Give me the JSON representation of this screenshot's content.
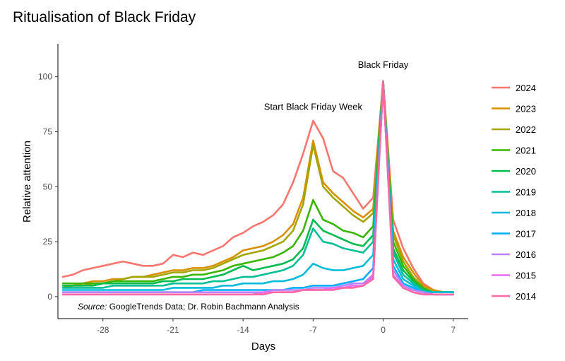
{
  "chart_data": {
    "type": "line",
    "title": "Ritualisation of Black Friday",
    "xlabel": "Days",
    "ylabel": "Relative attention",
    "xlim": [
      -32.5,
      8.5
    ],
    "ylim": [
      -10,
      115
    ],
    "xticks": [
      -28,
      -21,
      -14,
      -7,
      0,
      7
    ],
    "xtick_labels": [
      "-28",
      "-21",
      "-14",
      "-7",
      "0",
      "7"
    ],
    "yticks": [
      0,
      25,
      50,
      75,
      100
    ],
    "ytick_labels": [
      "0",
      "25",
      "50",
      "75",
      "100"
    ],
    "grid": false,
    "legend_position": "right",
    "source_prefix": "Source:",
    "source_text": " GoogleTrends Data; Dr. Robin Bachmann Analysis",
    "annotations": [
      {
        "text": "Black Friday",
        "x": 0,
        "y": 104
      },
      {
        "text": "Start Black Friday Week",
        "x": -7,
        "y": 85
      }
    ],
    "series": [
      {
        "name": "2024",
        "color": "#F8766D",
        "x": [
          -32,
          -31,
          -30,
          -29,
          -28,
          -27,
          -26,
          -25,
          -24,
          -23,
          -22,
          -21,
          -20,
          -19,
          -18,
          -17,
          -16,
          -15,
          -14,
          -13,
          -12,
          -11,
          -10,
          -9,
          -8,
          -7,
          -6,
          -5,
          -4,
          -3,
          -2,
          -1,
          0,
          1,
          2,
          3,
          4,
          5,
          6,
          7
        ],
        "y": [
          9,
          10,
          12,
          13,
          14,
          15,
          16,
          15,
          14,
          14,
          15,
          19,
          18,
          20,
          19,
          21,
          23,
          27,
          29,
          32,
          34,
          37,
          42,
          52,
          65,
          80,
          72,
          57,
          54,
          47,
          40,
          45,
          98,
          35,
          22,
          13,
          6,
          3,
          2,
          2
        ]
      },
      {
        "name": "2023",
        "color": "#D89000",
        "x": [
          -32,
          -31,
          -30,
          -29,
          -28,
          -27,
          -26,
          -25,
          -24,
          -23,
          -22,
          -21,
          -20,
          -19,
          -18,
          -17,
          -16,
          -15,
          -14,
          -13,
          -12,
          -11,
          -10,
          -9,
          -8,
          -7,
          -6,
          -5,
          -4,
          -3,
          -2,
          -1,
          0,
          1,
          2,
          3,
          4,
          5,
          6,
          7
        ],
        "y": [
          5,
          5,
          6,
          7,
          7,
          8,
          8,
          9,
          9,
          10,
          11,
          12,
          12,
          13,
          13,
          14,
          16,
          18,
          21,
          22,
          23,
          25,
          28,
          33,
          45,
          71,
          52,
          47,
          43,
          39,
          36,
          40,
          98,
          30,
          18,
          11,
          5,
          3,
          2,
          2
        ]
      },
      {
        "name": "2022",
        "color": "#A3A500",
        "x": [
          -32,
          -31,
          -30,
          -29,
          -28,
          -27,
          -26,
          -25,
          -24,
          -23,
          -22,
          -21,
          -20,
          -19,
          -18,
          -17,
          -16,
          -15,
          -14,
          -13,
          -12,
          -11,
          -10,
          -9,
          -8,
          -7,
          -6,
          -5,
          -4,
          -3,
          -2,
          -1,
          0,
          1,
          2,
          3,
          4,
          5,
          6,
          7
        ],
        "y": [
          4,
          5,
          5,
          6,
          6,
          7,
          8,
          9,
          9,
          9,
          10,
          11,
          11,
          12,
          12,
          13,
          15,
          17,
          19,
          20,
          21,
          23,
          25,
          30,
          42,
          69,
          50,
          45,
          41,
          37,
          34,
          38,
          98,
          28,
          16,
          9,
          4,
          2,
          2,
          2
        ]
      },
      {
        "name": "2021",
        "color": "#39B600",
        "x": [
          -32,
          -31,
          -30,
          -29,
          -28,
          -27,
          -26,
          -25,
          -24,
          -23,
          -22,
          -21,
          -20,
          -19,
          -18,
          -17,
          -16,
          -15,
          -14,
          -13,
          -12,
          -11,
          -10,
          -9,
          -8,
          -7,
          -6,
          -5,
          -4,
          -3,
          -2,
          -1,
          0,
          1,
          2,
          3,
          4,
          5,
          6,
          7
        ],
        "y": [
          6,
          6,
          6,
          6,
          6,
          7,
          7,
          7,
          7,
          7,
          8,
          9,
          9,
          10,
          10,
          11,
          12,
          14,
          15,
          16,
          17,
          18,
          20,
          23,
          30,
          44,
          35,
          33,
          30,
          29,
          27,
          32,
          98,
          25,
          14,
          8,
          4,
          2,
          2,
          2
        ]
      },
      {
        "name": "2020",
        "color": "#00BB4E",
        "x": [
          -32,
          -31,
          -30,
          -29,
          -28,
          -27,
          -26,
          -25,
          -24,
          -23,
          -22,
          -21,
          -20,
          -19,
          -18,
          -17,
          -16,
          -15,
          -14,
          -13,
          -12,
          -11,
          -10,
          -9,
          -8,
          -7,
          -6,
          -5,
          -4,
          -3,
          -2,
          -1,
          0,
          1,
          2,
          3,
          4,
          5,
          6,
          7
        ],
        "y": [
          5,
          5,
          5,
          5,
          6,
          6,
          6,
          6,
          6,
          6,
          7,
          7,
          8,
          8,
          8,
          9,
          10,
          12,
          14,
          12,
          13,
          14,
          15,
          17,
          22,
          35,
          30,
          28,
          26,
          24,
          23,
          28,
          98,
          22,
          12,
          7,
          3,
          2,
          2,
          2
        ]
      },
      {
        "name": "2019",
        "color": "#00BF96",
        "x": [
          -32,
          -31,
          -30,
          -29,
          -28,
          -27,
          -26,
          -25,
          -24,
          -23,
          -22,
          -21,
          -20,
          -19,
          -18,
          -17,
          -16,
          -15,
          -14,
          -13,
          -12,
          -11,
          -10,
          -9,
          -8,
          -7,
          -6,
          -5,
          -4,
          -3,
          -2,
          -1,
          0,
          1,
          2,
          3,
          4,
          5,
          6,
          7
        ],
        "y": [
          4,
          4,
          4,
          4,
          4,
          5,
          5,
          5,
          5,
          5,
          5,
          6,
          6,
          6,
          6,
          7,
          7,
          8,
          9,
          9,
          10,
          11,
          12,
          14,
          19,
          31,
          25,
          24,
          22,
          21,
          20,
          25,
          97,
          20,
          10,
          6,
          3,
          2,
          2,
          2
        ]
      },
      {
        "name": "2018",
        "color": "#00BBDA",
        "x": [
          -32,
          -31,
          -30,
          -29,
          -28,
          -27,
          -26,
          -25,
          -24,
          -23,
          -22,
          -21,
          -20,
          -19,
          -18,
          -17,
          -16,
          -15,
          -14,
          -13,
          -12,
          -11,
          -10,
          -9,
          -8,
          -7,
          -6,
          -5,
          -4,
          -3,
          -2,
          -1,
          0,
          1,
          2,
          3,
          4,
          5,
          6,
          7
        ],
        "y": [
          3,
          3,
          3,
          3,
          3,
          3,
          3,
          3,
          3,
          3,
          3,
          4,
          4,
          4,
          4,
          4,
          5,
          5,
          6,
          6,
          6,
          7,
          7,
          8,
          10,
          15,
          13,
          12,
          12,
          13,
          14,
          19,
          98,
          17,
          8,
          5,
          2,
          2,
          2,
          2
        ]
      },
      {
        "name": "2017",
        "color": "#00ADFA",
        "x": [
          -32,
          -31,
          -30,
          -29,
          -28,
          -27,
          -26,
          -25,
          -24,
          -23,
          -22,
          -21,
          -20,
          -19,
          -18,
          -17,
          -16,
          -15,
          -14,
          -13,
          -12,
          -11,
          -10,
          -9,
          -8,
          -7,
          -6,
          -5,
          -4,
          -3,
          -2,
          -1,
          0,
          1,
          2,
          3,
          4,
          5,
          6,
          7
        ],
        "y": [
          2,
          2,
          2,
          2,
          2,
          2,
          2,
          2,
          2,
          2,
          2,
          2,
          2,
          2,
          3,
          3,
          3,
          3,
          3,
          3,
          3,
          3,
          3,
          4,
          4,
          5,
          5,
          5,
          6,
          7,
          8,
          13,
          96,
          14,
          6,
          4,
          2,
          1,
          1,
          1
        ]
      },
      {
        "name": "2016",
        "color": "#B983FF",
        "x": [
          -32,
          -31,
          -30,
          -29,
          -28,
          -27,
          -26,
          -25,
          -24,
          -23,
          -22,
          -21,
          -20,
          -19,
          -18,
          -17,
          -16,
          -15,
          -14,
          -13,
          -12,
          -11,
          -10,
          -9,
          -8,
          -7,
          -6,
          -5,
          -4,
          -3,
          -2,
          -1,
          0,
          1,
          2,
          3,
          4,
          5,
          6,
          7
        ],
        "y": [
          2,
          2,
          2,
          2,
          2,
          2,
          2,
          2,
          2,
          2,
          2,
          2,
          2,
          2,
          2,
          2,
          2,
          2,
          2,
          2,
          2,
          3,
          3,
          3,
          3,
          4,
          4,
          4,
          5,
          6,
          6,
          10,
          97,
          12,
          5,
          3,
          2,
          1,
          1,
          1
        ]
      },
      {
        "name": "2015",
        "color": "#E76BF3",
        "x": [
          -32,
          -31,
          -30,
          -29,
          -28,
          -27,
          -26,
          -25,
          -24,
          -23,
          -22,
          -21,
          -20,
          -19,
          -18,
          -17,
          -16,
          -15,
          -14,
          -13,
          -12,
          -11,
          -10,
          -9,
          -8,
          -7,
          -6,
          -5,
          -4,
          -3,
          -2,
          -1,
          0,
          1,
          2,
          3,
          4,
          5,
          6,
          7
        ],
        "y": [
          1,
          1,
          1,
          1,
          1,
          1,
          1,
          1,
          1,
          1,
          1,
          1,
          1,
          1,
          1,
          1,
          1,
          1,
          1,
          1,
          2,
          2,
          2,
          2,
          3,
          3,
          3,
          4,
          4,
          5,
          5,
          9,
          97,
          10,
          4,
          2,
          1,
          1,
          1,
          1
        ]
      },
      {
        "name": "2014",
        "color": "#FF67A4",
        "x": [
          -32,
          -31,
          -30,
          -29,
          -28,
          -27,
          -26,
          -25,
          -24,
          -23,
          -22,
          -21,
          -20,
          -19,
          -18,
          -17,
          -16,
          -15,
          -14,
          -13,
          -12,
          -11,
          -10,
          -9,
          -8,
          -7,
          -6,
          -5,
          -4,
          -3,
          -2,
          -1,
          0,
          1,
          2,
          3,
          4,
          5,
          6,
          7
        ],
        "y": [
          1,
          1,
          1,
          1,
          1,
          1,
          1,
          1,
          1,
          1,
          1,
          1,
          1,
          1,
          1,
          1,
          1,
          1,
          1,
          1,
          1,
          2,
          2,
          2,
          3,
          3,
          3,
          3,
          4,
          4,
          5,
          8,
          98,
          9,
          4,
          2,
          1,
          1,
          1,
          1
        ]
      }
    ]
  }
}
